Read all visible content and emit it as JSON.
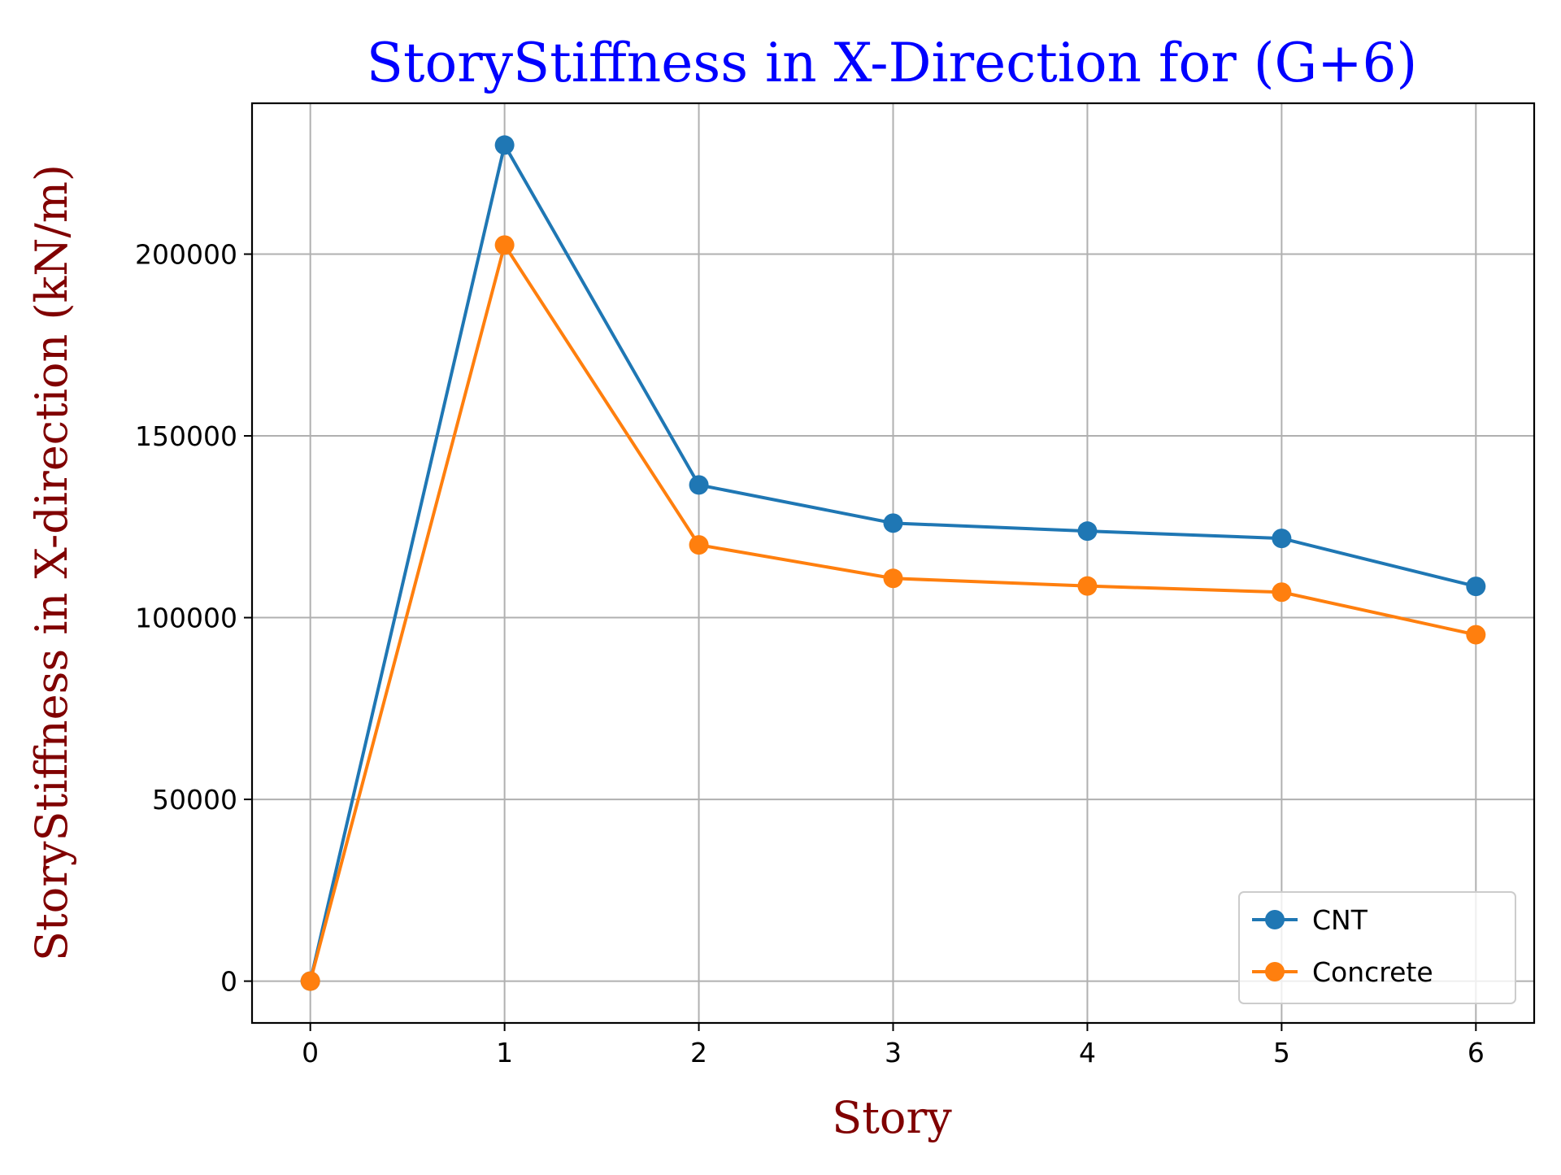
{
  "chart_data": {
    "type": "line",
    "title": "StoryStiffness in X-Direction for (G+6)",
    "xlabel": "Story",
    "ylabel": "StoryStiffness in X-direction (kN/m)",
    "x": [
      0,
      1,
      2,
      3,
      4,
      5,
      6
    ],
    "x_ticks": [
      "0",
      "1",
      "2",
      "3",
      "4",
      "5",
      "6"
    ],
    "y_ticks": [
      "0",
      "50000",
      "100000",
      "150000",
      "200000"
    ],
    "y_tick_values": [
      0,
      50000,
      100000,
      150000,
      200000
    ],
    "xlim": [
      -0.3,
      6.3
    ],
    "ylim": [
      -11500,
      241500
    ],
    "grid": true,
    "legend_position": "bottom-right",
    "series": [
      {
        "name": "CNT",
        "color": "#1f77b4",
        "marker": "circle",
        "values": [
          0,
          230000,
          136500,
          126000,
          123800,
          121800,
          108600
        ]
      },
      {
        "name": "Concrete",
        "color": "#ff7f0e",
        "marker": "circle",
        "values": [
          0,
          202500,
          120000,
          110800,
          108700,
          107000,
          95300
        ]
      }
    ]
  }
}
